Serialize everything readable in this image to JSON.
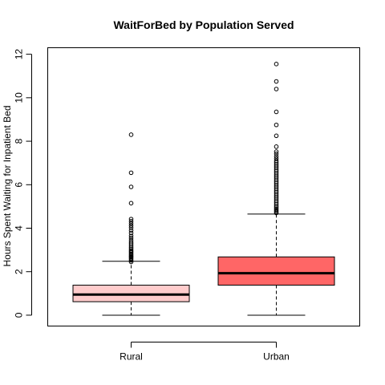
{
  "chart_data": {
    "type": "boxplot",
    "title": "WaitForBed by Population Served",
    "xlabel": "",
    "ylabel": "Hours Spent Waiting for Inpatient Bed",
    "ylim": [
      -0.5,
      12.3
    ],
    "yticks": [
      0,
      2,
      4,
      6,
      8,
      10,
      12
    ],
    "grid": false,
    "categories": [
      "Rural",
      "Urban"
    ],
    "boxes": [
      {
        "label": "Rural",
        "color": "#ffcccc",
        "whisker_low": 0.0,
        "q1": 0.62,
        "median": 0.95,
        "q3": 1.38,
        "whisker_high": 2.48,
        "outliers": [
          2.45,
          2.52,
          2.58,
          2.63,
          2.68,
          2.72,
          2.77,
          2.82,
          2.88,
          2.93,
          2.98,
          3.05,
          3.12,
          3.2,
          3.28,
          3.36,
          3.45,
          3.55,
          3.65,
          3.78,
          3.9,
          4.02,
          4.12,
          4.22,
          4.32,
          4.42,
          5.15,
          5.9,
          6.55,
          8.3
        ]
      },
      {
        "label": "Urban",
        "color": "#ff6666",
        "whisker_low": 0.0,
        "q1": 1.38,
        "median": 1.93,
        "q3": 2.68,
        "whisker_high": 4.65,
        "outliers": [
          4.7,
          4.76,
          4.82,
          4.88,
          4.95,
          5.02,
          5.1,
          5.18,
          5.26,
          5.34,
          5.42,
          5.5,
          5.58,
          5.66,
          5.74,
          5.82,
          5.9,
          5.98,
          6.06,
          6.14,
          6.22,
          6.3,
          6.38,
          6.46,
          6.54,
          6.62,
          6.7,
          6.78,
          6.86,
          6.94,
          7.02,
          7.1,
          7.2,
          7.3,
          7.42,
          7.52,
          7.75,
          8.25,
          8.75,
          9.35,
          10.4,
          10.75,
          11.55
        ]
      }
    ]
  }
}
